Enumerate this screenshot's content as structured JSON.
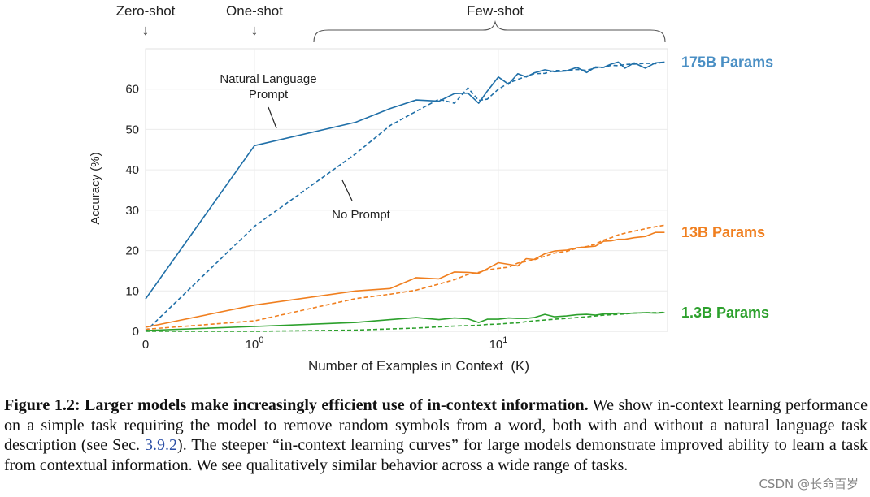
{
  "chart_data": {
    "type": "line",
    "xlabel": "Number of Examples in Context  (K)",
    "ylabel": "Accuracy (%)",
    "xscale": "symlog",
    "xlim": [
      0,
      50
    ],
    "ylim": [
      0,
      70
    ],
    "yticks": [
      0,
      10,
      20,
      30,
      40,
      50,
      60
    ],
    "xticks": [
      {
        "value": 0,
        "base": "0",
        "exp": ""
      },
      {
        "value": 1,
        "base": "10",
        "exp": "0"
      },
      {
        "value": 10,
        "base": "10",
        "exp": "1"
      }
    ],
    "top_labels": [
      {
        "text": "Zero-shot",
        "x": 0
      },
      {
        "text": "One-shot",
        "x": 1
      },
      {
        "text": "Few-shot",
        "x_start": 1.8,
        "x_end": 50
      }
    ],
    "annotations": {
      "prompt": {
        "line1": "Natural Language",
        "line2": "Prompt"
      },
      "no_prompt": "No Prompt"
    },
    "series": [
      {
        "name": "175B Params",
        "color": "#1f6fa8",
        "label_color": "#4a8fc4",
        "style": "solid",
        "x": [
          0,
          1,
          2.6,
          3.6,
          4.6,
          5.7,
          6.6,
          7.5,
          8.3,
          9.0,
          10.0,
          11.0,
          12.0,
          13.0,
          14.0,
          15.5,
          17.0,
          19.0,
          21.0,
          23.0,
          25.0,
          27.0,
          29.0,
          31.0,
          33.0,
          36.0,
          40.0,
          44.0,
          48.0
        ],
        "y": [
          8,
          46,
          51.8,
          55.2,
          57.3,
          57,
          58.9,
          59,
          56.5,
          59.5,
          63,
          61.2,
          63.8,
          63,
          64,
          64.8,
          64.3,
          64.5,
          65.4,
          64.1,
          65.5,
          65.4,
          66.2,
          66.7,
          65.2,
          66.5,
          65.2,
          66.5,
          66.7
        ]
      },
      {
        "name": "175B Params (no prompt)",
        "color": "#1f6fa8",
        "style": "dashed",
        "x": [
          0,
          1,
          2.6,
          3.6,
          4.6,
          5.7,
          6.6,
          7.5,
          8.3,
          9.0,
          10.0,
          11.0,
          12.0,
          13.0,
          14.0,
          15.5,
          17.0,
          19.0,
          21.0,
          23.0,
          25.0,
          27.0,
          29.0,
          31.0,
          33.0,
          36.0,
          40.0,
          44.0,
          48.0
        ],
        "y": [
          0,
          26,
          44,
          51,
          54.5,
          57.5,
          56.5,
          60.3,
          57.2,
          57.5,
          60,
          61.5,
          62.4,
          63.2,
          63.8,
          63.9,
          64.6,
          64.6,
          64.9,
          64.6,
          65.3,
          65.4,
          65.9,
          65.8,
          66.1,
          66.2,
          66.4,
          66.3,
          66.7
        ]
      },
      {
        "name": "13B Params",
        "color": "#f07f1f",
        "label_color": "#f07f1f",
        "style": "solid",
        "x": [
          0,
          1,
          2.6,
          3.6,
          4.6,
          5.7,
          6.6,
          7.5,
          8.3,
          9.0,
          10.0,
          11.0,
          12.0,
          13.0,
          14.0,
          15.5,
          17.0,
          19.0,
          21.0,
          23.0,
          25.0,
          27.0,
          29.0,
          31.0,
          33.0,
          36.0,
          40.0,
          44.0,
          48.0
        ],
        "y": [
          1,
          6.5,
          10,
          10.6,
          13.3,
          13,
          14.7,
          14.6,
          14.4,
          15.5,
          17,
          16.6,
          16.2,
          18,
          17.8,
          19.2,
          19.9,
          20.1,
          20.7,
          20.9,
          21.1,
          22.3,
          22.4,
          22.8,
          22.8,
          23.2,
          23.5,
          24.5,
          24.5
        ]
      },
      {
        "name": "13B Params (no prompt)",
        "color": "#f07f1f",
        "style": "dashed",
        "x": [
          0,
          1,
          2.6,
          3.6,
          4.6,
          5.7,
          6.6,
          7.5,
          8.3,
          9.0,
          10.0,
          11.0,
          12.0,
          13.0,
          14.0,
          15.5,
          17.0,
          19.0,
          21.0,
          23.0,
          25.0,
          27.0,
          29.0,
          31.0,
          33.0,
          36.0,
          40.0,
          44.0,
          48.0
        ],
        "y": [
          0.5,
          2.6,
          8.1,
          9.2,
          10.2,
          11.7,
          12.8,
          14.1,
          14.6,
          15.2,
          15.6,
          15.9,
          16.9,
          17.3,
          17.7,
          18.6,
          19.4,
          19.8,
          20.6,
          21.0,
          21.6,
          22.6,
          23.2,
          23.9,
          24.3,
          24.8,
          25.4,
          25.9,
          26.3
        ]
      },
      {
        "name": "1.3B Params",
        "color": "#2ca02c",
        "label_color": "#2ca02c",
        "style": "solid",
        "x": [
          0,
          1,
          2.6,
          3.6,
          4.6,
          5.7,
          6.6,
          7.5,
          8.3,
          9.0,
          10.0,
          11.0,
          12.0,
          13.0,
          14.0,
          15.5,
          17.0,
          19.0,
          21.0,
          23.0,
          25.0,
          27.0,
          29.0,
          31.0,
          33.0,
          36.0,
          40.0,
          44.0,
          48.0
        ],
        "y": [
          0.2,
          1.2,
          2.2,
          2.9,
          3.4,
          2.9,
          3.3,
          3.1,
          2.2,
          3,
          3,
          3.3,
          3.2,
          3.2,
          3.4,
          4.2,
          3.6,
          3.8,
          4.1,
          4.2,
          4,
          4.3,
          4.3,
          4.5,
          4.4,
          4.5,
          4.6,
          4.5,
          4.6
        ]
      },
      {
        "name": "1.3B Params (no prompt)",
        "color": "#2ca02c",
        "style": "dashed",
        "x": [
          0,
          1,
          2.6,
          3.6,
          4.6,
          5.7,
          6.6,
          7.5,
          8.3,
          9.0,
          10.0,
          11.0,
          12.0,
          13.0,
          14.0,
          15.5,
          17.0,
          19.0,
          21.0,
          23.0,
          25.0,
          27.0,
          29.0,
          31.0,
          33.0,
          36.0,
          40.0,
          44.0,
          48.0
        ],
        "y": [
          0,
          0,
          0.3,
          0.6,
          0.8,
          1.1,
          1.3,
          1.4,
          1.5,
          1.7,
          1.8,
          2.0,
          2.1,
          2.4,
          2.6,
          2.8,
          3.0,
          3.2,
          3.4,
          3.6,
          3.8,
          4.0,
          4.1,
          4.2,
          4.3,
          4.5,
          4.6,
          4.6,
          4.7
        ]
      }
    ]
  },
  "caption": {
    "title": "Figure 1.2: Larger models make increasingly efficient use of in-context information.",
    "body_before_ref": "  We show in-context learning performance on a simple task requiring the model to remove random symbols from a word, both with and without a natural language task description (see Sec. ",
    "sec_ref": "3.9.2",
    "body_after_ref": "). The steeper “in-context learning curves” for large models demonstrate improved ability to learn a task from contextual information. We see qualitatively similar behavior across a wide range of tasks."
  },
  "watermark": "CSDN @长命百岁️"
}
